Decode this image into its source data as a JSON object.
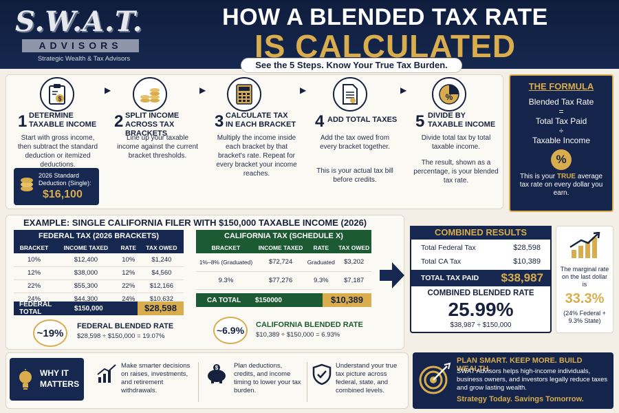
{
  "header": {
    "logo_main": "S.W.A.T.",
    "logo_sub": "ADVISORS",
    "logo_tagline": "Strategic Wealth & Tax Advisors",
    "title_line1": "HOW A BLENDED TAX RATE",
    "title_line2": "IS CALCULATED",
    "subtitle": "See the 5 Steps. Know Your True Tax Burden."
  },
  "steps": [
    {
      "num": "1",
      "title": "DETERMINE\nTAXABLE INCOME",
      "desc": "Start with gross income, then subtract the standard deduction or itemized deductions.",
      "icon": "clipboard-dollar-icon"
    },
    {
      "num": "2",
      "title": "SPLIT INCOME\nACROSS TAX BRACKETS",
      "desc": "Line up your taxable income against the current bracket thresholds.",
      "icon": "coin-stacks-icon"
    },
    {
      "num": "3",
      "title": "CALCULATE TAX\nIN EACH BRACKET",
      "desc": "Multiply the income inside each bracket by that bracket's rate. Repeat for every bracket your income reaches.",
      "icon": "calculator-icon"
    },
    {
      "num": "4",
      "title": "ADD TOTAL TAXES",
      "desc": "Add the tax owed from every bracket together.",
      "desc2": "This is your actual tax bill before credits.",
      "icon": "document-icon"
    },
    {
      "num": "5",
      "title": "DIVIDE BY\nTAXABLE INCOME",
      "desc": "Divide total tax by total taxable income.",
      "desc2": "The result, shown as a percentage, is your blended tax rate.",
      "icon": "percent-pie-icon"
    }
  ],
  "deduction": {
    "label": "2026 Standard Deduction (Single):",
    "value": "$16,100"
  },
  "formula": {
    "title": "THE FORMULA",
    "line1": "Blended Tax Rate",
    "eq": "=",
    "line2": "Total Tax Paid",
    "div": "÷",
    "line3": "Taxable Income",
    "badge": "%",
    "note_pre": "This is your ",
    "note_em": "TRUE",
    "note_post": " average tax rate on every dollar you earn."
  },
  "example": {
    "title": "EXAMPLE: SINGLE CALIFORNIA FILER WITH $150,000 TAXABLE INCOME (2026)",
    "federal": {
      "header": "FEDERAL TAX (2026 BRACKETS)",
      "columns": [
        "BRACKET",
        "INCOME TAXED",
        "RATE",
        "TAX OWED"
      ],
      "rows": [
        [
          "10%",
          "$12,400",
          "10%",
          "$1,240"
        ],
        [
          "12%",
          "$38,000",
          "12%",
          "$4,560"
        ],
        [
          "22%",
          "$55,300",
          "22%",
          "$12,166"
        ],
        [
          "24%",
          "$44,300",
          "24%",
          "$10,632"
        ]
      ],
      "total_label": "FEDERAL TOTAL",
      "total_income": "$150,000",
      "total_tax": "$28,598",
      "badge": "~19%",
      "rate_title": "FEDERAL BLENDED RATE",
      "rate_calc": "$28,598 ÷ $150,000 = 19.07%"
    },
    "california": {
      "header": "CALIFORNIA TAX (SCHEDULE X)",
      "columns": [
        "BRACKET",
        "INCOME TAXED",
        "RATE",
        "TAX OWED"
      ],
      "rows": [
        [
          "1%–8% (Graduated)",
          "$72,724",
          "Graduated",
          "$3,202"
        ],
        [
          "9.3%",
          "$77,276",
          "9.3%",
          "$7,187"
        ]
      ],
      "total_label": "CA TOTAL",
      "total_income": "$150000",
      "total_tax": "$10,389",
      "badge": "~6.9%",
      "rate_title": "CALIFORNIA BLENDED RATE",
      "rate_calc": "$10,389 ÷ $150,000 = 6.93%"
    }
  },
  "results": {
    "title": "COMBINED RESULTS",
    "fed_label": "Total Federal Tax",
    "fed_value": "$28,598",
    "ca_label": "Total CA Tax",
    "ca_value": "$10,389",
    "total_label": "TOTAL TAX PAID",
    "total_value": "$38,987",
    "blended_label": "COMBINED BLENDED RATE",
    "blended_value": "25.99%",
    "blended_calc": "$38,987 ÷ $150,000"
  },
  "marginal": {
    "label": "The marginal rate on the last dollar is",
    "value": "33.3%",
    "detail": "(24% Federal + 9.3% State)"
  },
  "footer": {
    "why_title": "WHY IT MATTERS",
    "items": [
      {
        "icon": "growth-chart-icon",
        "text": "Make smarter decisions on raises, investments, and retirement withdrawals."
      },
      {
        "icon": "piggy-bank-icon",
        "text": "Plan deductions, credits, and income timing to lower your tax burden."
      },
      {
        "icon": "shield-check-icon",
        "text": "Understand your true tax picture across federal, state, and combined levels."
      }
    ],
    "cta_title": "PLAN SMART. KEEP MORE. BUILD WEALTH.",
    "cta_body": "SWAT Advisors helps high-income individuals, business owners, and investors legally reduce taxes and grow lasting wealth.",
    "cta_tagline": "Strategy Today. Savings Tomorrow."
  },
  "colors": {
    "navy": "#16284f",
    "gold": "#d9ad4d",
    "green": "#1c5a33",
    "cream": "#f3efe6"
  }
}
